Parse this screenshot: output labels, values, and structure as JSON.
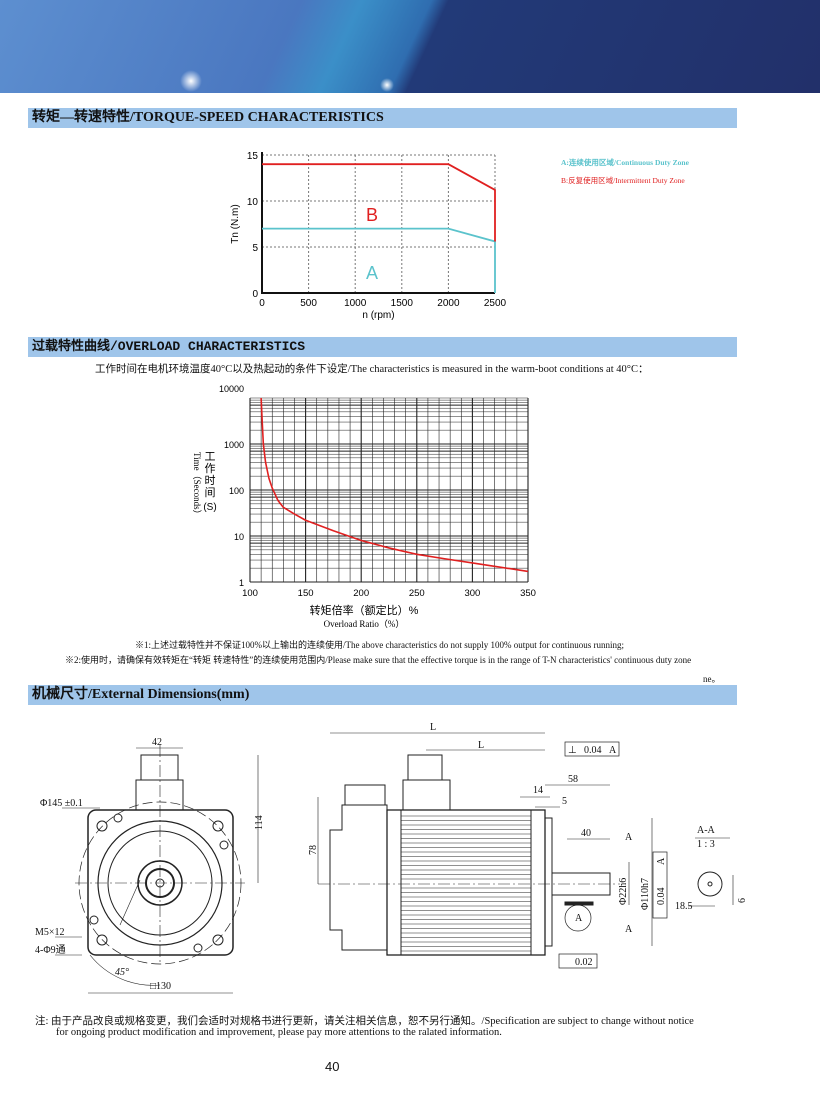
{
  "sections": {
    "torque": "转矩—转速特性/TORQUE-SPEED CHARACTERISTICS",
    "overload": "过载特性曲线/OVERLOAD CHARACTERISTICS",
    "dimensions": "机械尺寸/External Dimensions(mm)"
  },
  "overload_condition": "工作时间在电机环境温度40°C以及热起动的条件下设定/The characteristics is measured in the warm-boot conditions at 40°C：",
  "notes": {
    "note1": "※1:上述过载特性并不保证100%以上输出的连续使用/The above characteristics do not supply 100% output for continuous running;",
    "note2": "※2:使用时，请确保有效转矩在“转矩 转速特性”的连续使用范围内/Please make sure that the effective torque is in the range of T-N characteristics' continuous duty zone",
    "note2_tail": "ne。"
  },
  "dimensions": {
    "front": {
      "width_top": "42",
      "height_114": "114",
      "pcd": "Φ145  ±0.1",
      "thread": "M5×12",
      "holes": "4-Φ9通",
      "angle": "45°",
      "square": "□130"
    },
    "side": {
      "L1": "L",
      "L2": "L",
      "height_78": "78",
      "d58": "58",
      "d14": "14",
      "d5": "5",
      "d40": "40",
      "shaft": "Φ22h6",
      "spigot": "Φ110h7",
      "perp_sym": "⊥",
      "perp_val": "0.04",
      "perp_ref": "A",
      "conc_val": "0.04",
      "conc_ref": "A",
      "runout_val": "0.02",
      "datum": "A",
      "sectionA1": "A",
      "sectionA2": "A"
    },
    "section": {
      "title": "A-A",
      "scale": "1 : 3",
      "w": "18.5",
      "key": "6"
    }
  },
  "footer": {
    "note_line1": "注:  由于产品改良或规格变更，我们会适时对规格书进行更新，请关注相关信息，恕不另行通知。/Specification are subject to change without notice",
    "note_line2": "for ongoing product modification and improvement, please pay more attentions to the ralated information.",
    "page_number": "40"
  },
  "colors": {
    "section_bar": "#9fc5ea",
    "continuous": "#5bc3cc",
    "intermittent": "#e02020"
  },
  "chart_data": [
    {
      "type": "line",
      "xlabel": "n (rpm)",
      "ylabel": "Tn (N.m)",
      "xlim": [
        0,
        2500
      ],
      "ylim": [
        0,
        15
      ],
      "xticks": [
        "0",
        "500",
        "1000",
        "1500",
        "2000",
        "2500"
      ],
      "yticks": [
        "0",
        "5",
        "10",
        "15"
      ],
      "grid": true,
      "legend_position": "right",
      "legend": [
        "A:连续使用区域/Continuous Duty Zone",
        "B:反复使用区域/Intermittent Duty Zone"
      ],
      "zone_labels": [
        "A",
        "B"
      ],
      "series": [
        {
          "name": "A",
          "x": [
            0,
            2000,
            2500,
            2500
          ],
          "y": [
            7,
            7,
            5.6,
            0
          ]
        },
        {
          "name": "B",
          "x": [
            0,
            2000,
            2500,
            2500
          ],
          "y": [
            14,
            14,
            11.2,
            5.6
          ]
        }
      ]
    },
    {
      "type": "line",
      "xlabel": "转矩倍率（额定比）%",
      "xlabel2": "Overload Ratio（%）",
      "ylabel": "工作时间",
      "ylabel2": "Time（Seconds）",
      "ylabel3": "(S)",
      "yscale": "log",
      "xlim": [
        100,
        350
      ],
      "ylim": [
        1,
        10000
      ],
      "xticks": [
        "100",
        "150",
        "200",
        "250",
        "300",
        "350"
      ],
      "yticks": [
        "1",
        "10",
        "100",
        "1000",
        "10000"
      ],
      "grid": true,
      "series": [
        {
          "x": [
            110,
            111,
            112,
            114,
            117,
            120,
            125,
            130,
            140,
            150,
            175,
            200,
            225,
            250,
            275,
            300,
            325,
            350
          ],
          "y": [
            10000,
            3000,
            1000,
            400,
            180,
            110,
            60,
            42,
            30,
            22,
            13,
            8,
            5.5,
            4,
            3.2,
            2.6,
            2.1,
            1.7
          ]
        }
      ]
    }
  ]
}
